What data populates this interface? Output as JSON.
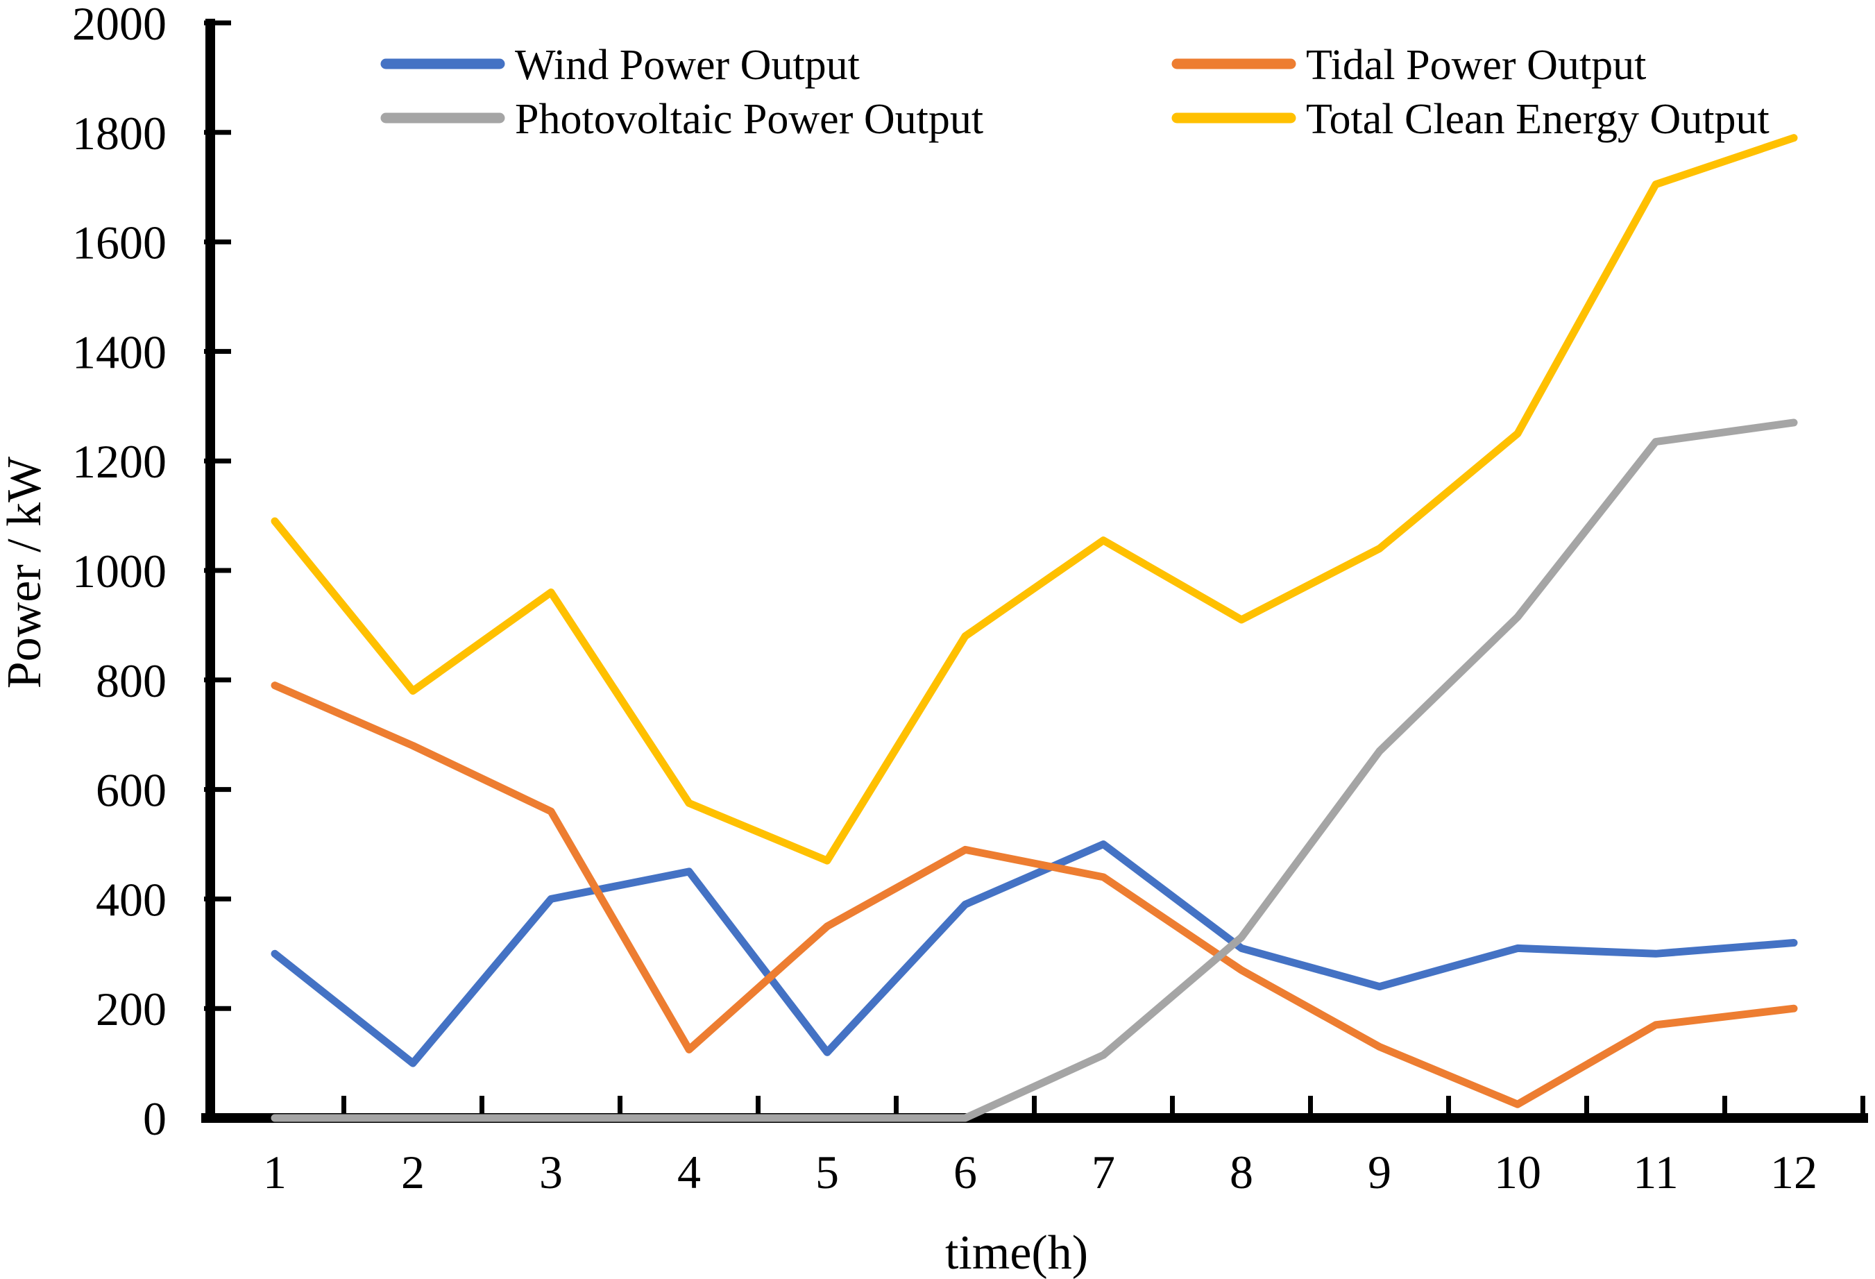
{
  "chart_data": {
    "type": "line",
    "title": "",
    "xlabel": "time(h)",
    "ylabel": "Power / kW",
    "x": [
      1,
      2,
      3,
      4,
      5,
      6,
      7,
      8,
      9,
      10,
      11,
      12
    ],
    "ylim": [
      0,
      2000
    ],
    "ytick_step": 200,
    "yticks": [
      0,
      200,
      400,
      600,
      800,
      1000,
      1200,
      1400,
      1600,
      1800,
      2000
    ],
    "grid": false,
    "legend_position": "top-two-columns",
    "axis_color": "#000000",
    "series": [
      {
        "name": "Wind Power Output",
        "color": "#4472C4",
        "values": [
          300,
          100,
          400,
          450,
          120,
          390,
          500,
          310,
          240,
          310,
          300,
          320
        ]
      },
      {
        "name": "Tidal Power Output",
        "color": "#ED7D31",
        "values": [
          790,
          680,
          560,
          125,
          350,
          490,
          440,
          270,
          130,
          25,
          170,
          200
        ]
      },
      {
        "name": "Photovoltaic Power Output",
        "color": "#A5A5A5",
        "values": [
          0,
          0,
          0,
          0,
          0,
          0,
          115,
          330,
          670,
          915,
          1235,
          1270
        ]
      },
      {
        "name": "Total Clean Energy Output",
        "color": "#FFC000",
        "values": [
          1090,
          780,
          960,
          575,
          470,
          880,
          1055,
          910,
          1040,
          1250,
          1705,
          1790
        ]
      }
    ]
  }
}
